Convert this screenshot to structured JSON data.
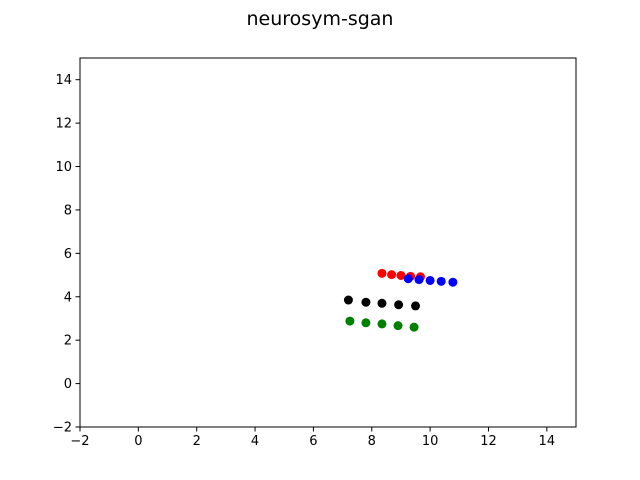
{
  "chart_data": {
    "type": "scatter",
    "title": "neurosym-sgan",
    "xlabel": "",
    "ylabel": "",
    "xlim": [
      -2,
      15
    ],
    "ylim": [
      -2,
      15
    ],
    "xticks": [
      -2,
      0,
      2,
      4,
      6,
      8,
      10,
      12,
      14
    ],
    "yticks": [
      -2,
      0,
      2,
      4,
      6,
      8,
      10,
      12,
      14
    ],
    "grid": false,
    "legend": "none",
    "series": [
      {
        "color": "#ff0000",
        "x": [
          8.35,
          8.68,
          9.0,
          9.33,
          9.67
        ],
        "y": [
          5.08,
          5.02,
          4.98,
          4.94,
          4.92
        ]
      },
      {
        "color": "#0000ff",
        "x": [
          9.25,
          9.62,
          10.0,
          10.38,
          10.78
        ],
        "y": [
          4.83,
          4.79,
          4.75,
          4.71,
          4.67
        ]
      },
      {
        "color": "#000000",
        "x": [
          7.2,
          7.8,
          8.35,
          8.92,
          9.5
        ],
        "y": [
          3.85,
          3.75,
          3.7,
          3.63,
          3.58
        ]
      },
      {
        "color": "#008000",
        "x": [
          7.25,
          7.8,
          8.35,
          8.9,
          9.45
        ],
        "y": [
          2.88,
          2.8,
          2.75,
          2.67,
          2.6
        ]
      }
    ]
  }
}
